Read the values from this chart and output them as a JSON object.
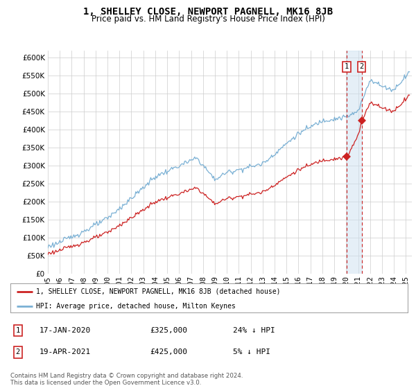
{
  "title": "1, SHELLEY CLOSE, NEWPORT PAGNELL, MK16 8JB",
  "subtitle": "Price paid vs. HM Land Registry's House Price Index (HPI)",
  "ylim": [
    0,
    620000
  ],
  "yticks": [
    0,
    50000,
    100000,
    150000,
    200000,
    250000,
    300000,
    350000,
    400000,
    450000,
    500000,
    550000,
    600000
  ],
  "xlim_start": 1995.0,
  "xlim_end": 2025.5,
  "background_color": "#ffffff",
  "grid_color": "#cccccc",
  "hpi_color": "#7ab0d4",
  "price_color": "#cc2222",
  "sale1_date_num": 2020.04,
  "sale1_price": 325000,
  "sale1_label": "1",
  "sale2_date_num": 2021.29,
  "sale2_price": 425000,
  "sale2_label": "2",
  "legend_entry1": "1, SHELLEY CLOSE, NEWPORT PAGNELL, MK16 8JB (detached house)",
  "legend_entry2": "HPI: Average price, detached house, Milton Keynes",
  "table_row1": [
    "1",
    "17-JAN-2020",
    "£325,000",
    "24% ↓ HPI"
  ],
  "table_row2": [
    "2",
    "19-APR-2021",
    "£425,000",
    "5% ↓ HPI"
  ],
  "footer": "Contains HM Land Registry data © Crown copyright and database right 2024.\nThis data is licensed under the Open Government Licence v3.0.",
  "title_fontsize": 10,
  "subtitle_fontsize": 8.5,
  "tick_fontsize": 7.5,
  "legend_fontsize": 7.5
}
